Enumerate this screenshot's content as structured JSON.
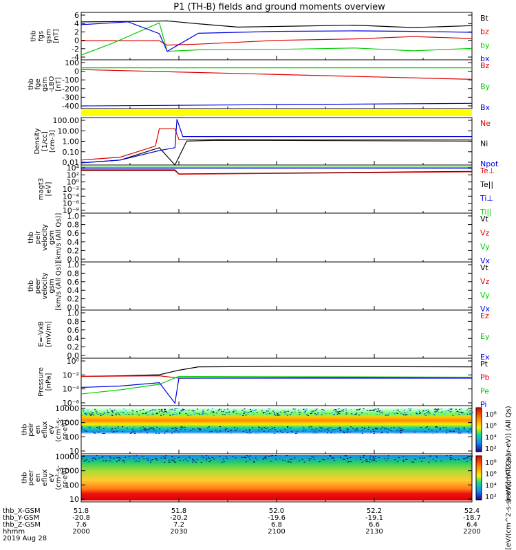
{
  "title": "P1 (TH-B) fields and ground moments overview",
  "colors": {
    "black": "#000000",
    "red": "#dd0000",
    "green": "#00cc00",
    "blue": "#0000dd",
    "yellow": "#ffff00"
  },
  "chart_data": [
    {
      "type": "line",
      "panel": "fgs",
      "ylabel": [
        "thb",
        "fgs",
        "gsm",
        "[nT]"
      ],
      "yticks": [
        "6",
        "4",
        "2",
        "0",
        "-2",
        "-4"
      ],
      "ylim": [
        -4,
        6
      ],
      "legend": [
        "Bt",
        "bz",
        "by",
        "bx"
      ],
      "legend_colors": [
        "#000000",
        "#dd0000",
        "#00cc00",
        "#0000dd"
      ],
      "series": [
        {
          "name": "Bt",
          "x": [
            0,
            0.15,
            0.22,
            0.3,
            0.4,
            0.55,
            0.7,
            0.85,
            1.0
          ],
          "y": [
            4,
            4.1,
            4.2,
            3.6,
            2.9,
            3.1,
            3.3,
            2.8,
            3.2
          ]
        },
        {
          "name": "bz",
          "x": [
            0,
            0.1,
            0.2,
            0.22,
            0.3,
            0.5,
            0.7,
            0.85,
            1.0
          ],
          "y": [
            0,
            0,
            0,
            -0.9,
            -0.7,
            0.1,
            0.4,
            0.9,
            0.5
          ]
        },
        {
          "name": "by",
          "x": [
            0,
            0.08,
            0.2,
            0.22,
            0.3,
            0.5,
            0.7,
            0.85,
            1.0
          ],
          "y": [
            -3,
            -0.5,
            3.8,
            -2.2,
            -1.9,
            -1.8,
            -1.5,
            -2.1,
            -1.6
          ]
        },
        {
          "name": "bx",
          "x": [
            0,
            0.12,
            0.2,
            0.22,
            0.3,
            0.5,
            0.7,
            0.85,
            1.0
          ],
          "y": [
            3.4,
            4,
            1.5,
            -2.2,
            1.6,
            2.0,
            2.1,
            2.0,
            1.8
          ]
        }
      ]
    },
    {
      "type": "line",
      "panel": "fge",
      "ylabel": [
        "thb",
        "fge",
        "gsm",
        "-LBO",
        "[nT]"
      ],
      "yticks": [
        "100",
        "0",
        "-100",
        "-200",
        "-300",
        "-400"
      ],
      "ylim": [
        -450,
        100
      ],
      "legend": [
        "Bz",
        "By",
        "Bx"
      ],
      "legend_colors": [
        "#dd0000",
        "#00cc00",
        "#0000dd"
      ],
      "series": [
        {
          "name": "Bz",
          "x": [
            0,
            1
          ],
          "y": [
            -10,
            -120
          ]
        },
        {
          "name": "By",
          "x": [
            0,
            1
          ],
          "y": [
            10,
            10
          ]
        },
        {
          "name": "Bx",
          "x": [
            0,
            1
          ],
          "y": [
            -420,
            -390
          ]
        }
      ]
    },
    {
      "type": "line",
      "panel": "density",
      "ylog": true,
      "ylabel": [
        "Density",
        "[1/cc]",
        "[cm-3]"
      ],
      "yticks": [
        "100.00",
        "10.00",
        "1.00",
        "0.10",
        "0.01"
      ],
      "ylim": [
        0.003,
        300
      ],
      "legend": [
        "Ne",
        "Ni",
        "Npot"
      ],
      "legend_colors": [
        "#dd0000",
        "#000000",
        "#0000dd"
      ],
      "series": [
        {
          "name": "Ne",
          "x": [
            0,
            0.1,
            0.19,
            0.2,
            0.24,
            0.25,
            1.0
          ],
          "y": [
            0.01,
            0.02,
            0.3,
            20,
            20,
            1.5,
            1.5
          ]
        },
        {
          "name": "Ni",
          "x": [
            0,
            0.1,
            0.2,
            0.24,
            0.27,
            0.35,
            1.0
          ],
          "y": [
            0.005,
            0.01,
            0.2,
            0.003,
            1.0,
            1.2,
            1.0
          ]
        },
        {
          "name": "Npot",
          "x": [
            0,
            0.1,
            0.2,
            0.24,
            0.245,
            0.26,
            1.0
          ],
          "y": [
            0.005,
            0.01,
            0.1,
            0.2,
            200,
            3,
            3
          ]
        }
      ]
    },
    {
      "type": "line",
      "panel": "temperature",
      "ylog": true,
      "ylabel": [
        "magt3",
        "[eV]"
      ],
      "yticks": [
        "10⁴",
        "10²",
        "10⁰",
        "10⁻²",
        "10⁻⁴",
        "10⁻⁶",
        "10⁻⁸"
      ],
      "ylim": [
        1e-08,
        10000.0
      ],
      "legend": [
        "Te⊥",
        "Te||",
        "Ti⊥",
        "Ti||"
      ],
      "legend_colors": [
        "#dd0000",
        "#000000",
        "#0000dd",
        "#00cc00"
      ],
      "series": [
        {
          "name": "Ti||",
          "x": [
            0,
            1
          ],
          "y": [
            3000,
            3000
          ]
        },
        {
          "name": "Ti⊥",
          "x": [
            0,
            1
          ],
          "y": [
            1500,
            1500
          ]
        },
        {
          "name": "Te||",
          "x": [
            0,
            0.24,
            0.25,
            1.0
          ],
          "y": [
            600,
            600,
            60,
            250
          ]
        },
        {
          "name": "Te⊥",
          "x": [
            0,
            0.24,
            0.25,
            1.0
          ],
          "y": [
            400,
            400,
            50,
            200
          ]
        }
      ]
    },
    {
      "type": "line",
      "panel": "peir_velocity",
      "ylabel": [
        "thb",
        "peir",
        "velocity",
        "gsm",
        "[km/s (All Qs)]"
      ],
      "yticks": [
        "1.0",
        "0.8",
        "0.6",
        "0.4",
        "0.2",
        "0.0"
      ],
      "ylim": [
        0,
        1
      ],
      "legend": [
        "Vt",
        "Vz",
        "Vy",
        "Vx"
      ],
      "legend_colors": [
        "#000000",
        "#dd0000",
        "#00cc00",
        "#0000dd"
      ],
      "series": []
    },
    {
      "type": "line",
      "panel": "peer_velocity",
      "ylabel": [
        "thb",
        "peer",
        "velocity",
        "gsm",
        "[km/s (All Qs)]"
      ],
      "yticks": [
        "1.0",
        "0.8",
        "0.6",
        "0.4",
        "0.2",
        "0.0"
      ],
      "ylim": [
        0,
        1
      ],
      "legend": [
        "Vt",
        "Vz",
        "Vy",
        "Vx"
      ],
      "legend_colors": [
        "#000000",
        "#dd0000",
        "#00cc00",
        "#0000dd"
      ],
      "series": []
    },
    {
      "type": "line",
      "panel": "efield",
      "ylabel": [
        "E=-VxB",
        "[mV/m]"
      ],
      "yticks": [
        "1.0",
        "0.8",
        "0.6",
        "0.4",
        "0.2",
        "0.0"
      ],
      "ylim": [
        0,
        1
      ],
      "legend": [
        "Ez",
        "Ey",
        "Ex"
      ],
      "legend_colors": [
        "#dd0000",
        "#00cc00",
        "#0000dd"
      ],
      "series": []
    },
    {
      "type": "line",
      "panel": "pressure",
      "ylog": true,
      "ylabel": [
        "Pressure",
        "[nPa]"
      ],
      "yticks": [
        "10⁰",
        "10⁻²",
        "10⁻⁴",
        "10⁻⁶"
      ],
      "ylim": [
        1e-06,
        1
      ],
      "legend": [
        "Pt",
        "Pb",
        "Pe",
        "Pi"
      ],
      "legend_colors": [
        "#000000",
        "#dd0000",
        "#00cc00",
        "#0000dd"
      ],
      "series": [
        {
          "name": "Pt",
          "x": [
            0,
            0.1,
            0.2,
            0.25,
            0.3,
            0.5,
            1.0
          ],
          "y": [
            0.005,
            0.006,
            0.008,
            0.03,
            0.08,
            0.09,
            0.08
          ]
        },
        {
          "name": "Pb",
          "x": [
            0,
            0.2,
            0.25,
            1.0
          ],
          "y": [
            0.005,
            0.006,
            0.003,
            0.004
          ]
        },
        {
          "name": "Pe",
          "x": [
            0,
            0.1,
            0.2,
            0.25,
            1.0
          ],
          "y": [
            3e-05,
            0.0001,
            0.0005,
            0.005,
            0.004
          ]
        },
        {
          "name": "Pi",
          "x": [
            0,
            0.1,
            0.2,
            0.24,
            0.25,
            1.0
          ],
          "y": [
            0.0002,
            0.0003,
            0.0008,
            2e-06,
            0.003,
            0.003
          ]
        }
      ]
    },
    {
      "type": "heatmap",
      "panel": "peir_spectrogram",
      "ylog": true,
      "ylabel": [
        "thb",
        "peir",
        "en",
        "eflux",
        "eV",
        "(cm²-s-",
        "sr-eV)"
      ],
      "yticks": [
        "10000",
        "1000",
        "100",
        "10"
      ],
      "ylim": [
        3,
        15000
      ],
      "colorbar": [
        "10⁸",
        "10⁶",
        "10⁴",
        "10²"
      ],
      "colorbar_label": "[eV/(cm^2-s-sr-eV)] (All Qs)"
    },
    {
      "type": "heatmap",
      "panel": "peer_spectrogram",
      "ylog": true,
      "ylabel": [
        "thb",
        "peer",
        "en",
        "eflux",
        "eV",
        "(cm²-s-",
        "sr-eV)"
      ],
      "yticks": [
        "10000",
        "1000",
        "100",
        "10"
      ],
      "ylim": [
        5,
        15000
      ],
      "colorbar": [
        "10⁸",
        "10⁶",
        "10⁴",
        "10²"
      ],
      "colorbar_label": "[eV/(cm^2-s-sr-eV)] (All Qs)"
    }
  ],
  "time_axis": {
    "row_labels": [
      "thb_X-GSM",
      "thb_Y-GSM",
      "thb_Z-GSM",
      "hhmm"
    ],
    "date": "2019 Aug 28",
    "columns": [
      {
        "values": [
          "51.8",
          "-20.8",
          "7.6",
          "2000"
        ]
      },
      {
        "values": [
          "51.8",
          "-20.2",
          "7.2",
          "2030"
        ]
      },
      {
        "values": [
          "52.0",
          "-19.6",
          "6.8",
          "2100"
        ]
      },
      {
        "values": [
          "52.2",
          "-19.1",
          "6.6",
          "2130"
        ]
      },
      {
        "values": [
          "52.4",
          "-18.7",
          "6.4",
          "2200"
        ]
      }
    ]
  }
}
